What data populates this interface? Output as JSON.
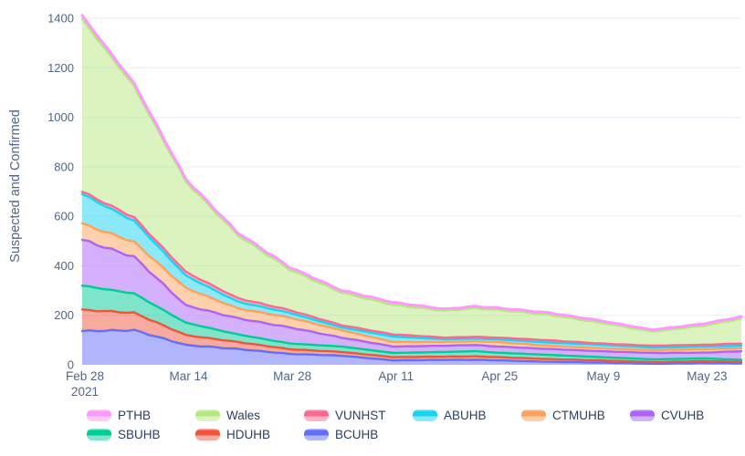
{
  "chart": {
    "y_axis": {
      "title": "Suspected and Confirmed",
      "ticks": [
        0,
        200,
        400,
        600,
        800,
        1000,
        1200,
        1400
      ]
    },
    "x_axis": {
      "ticks": [
        {
          "label": "Feb 28",
          "sub": "2021",
          "day": 0
        },
        {
          "label": "Mar 14",
          "sub": "",
          "day": 14
        },
        {
          "label": "Mar 28",
          "sub": "",
          "day": 28
        },
        {
          "label": "Apr 11",
          "sub": "",
          "day": 42
        },
        {
          "label": "Apr 25",
          "sub": "",
          "day": 56
        },
        {
          "label": "May 9",
          "sub": "",
          "day": 70
        },
        {
          "label": "May 23",
          "sub": "",
          "day": 84
        }
      ]
    },
    "colors": {
      "grid": "#EBF0F8",
      "tick_text": "#506784",
      "legend_text": "#2b3f5e",
      "background": "#ffffff"
    },
    "chart_data": {
      "type": "area",
      "stacked": true,
      "title": "",
      "xlabel": "",
      "ylabel": "Suspected and Confirmed",
      "ylim": [
        0,
        1450
      ],
      "grid": true,
      "legend_position": "bottom",
      "x_unit": "days since Feb 28, 2021",
      "keyframe_days": [
        0,
        7,
        14,
        21,
        28,
        35,
        42,
        49,
        53,
        56,
        63,
        70,
        77,
        84,
        89
      ],
      "keyframe_dates": [
        "Feb 28",
        "Mar 7",
        "Mar 14",
        "Mar 21",
        "Mar 28",
        "Apr 4",
        "Apr 11",
        "Apr 18",
        "Apr 22",
        "Apr 25",
        "May 2",
        "May 9",
        "May 16",
        "May 23",
        "May 28"
      ],
      "stack_order_note": "series listed bottom of stack to top of stack",
      "series": [
        {
          "name": "BCUHB",
          "color": "#636EFA",
          "pale": "#b1b7fc",
          "values": [
            136,
            140,
            80,
            64,
            44,
            37,
            18,
            20,
            20,
            18,
            12,
            9,
            4,
            7,
            6
          ]
        },
        {
          "name": "HDUHB",
          "color": "#EF553B",
          "pale": "#f7aa9d",
          "values": [
            86,
            70,
            40,
            28,
            19,
            15,
            13,
            13,
            14,
            13,
            11,
            9,
            7,
            8,
            6
          ]
        },
        {
          "name": "SBUHB",
          "color": "#00CC96",
          "pale": "#80e6cb",
          "values": [
            98,
            78,
            50,
            31,
            23,
            22,
            17,
            19,
            21,
            18,
            17,
            13,
            11,
            11,
            8
          ]
        },
        {
          "name": "CVUHB",
          "color": "#AB63FA",
          "pale": "#d5b1fc",
          "values": [
            185,
            148,
            70,
            65,
            65,
            36,
            26,
            25,
            25,
            25,
            24,
            24,
            26,
            23,
            35
          ]
        },
        {
          "name": "CTMUHB",
          "color": "#FFA15A",
          "pale": "#ffd0ac",
          "values": [
            65,
            60,
            70,
            40,
            40,
            30,
            18,
            15,
            15,
            18,
            13,
            12,
            11,
            14,
            12
          ]
        },
        {
          "name": "ABUHB",
          "color": "#19D3F3",
          "pale": "#8ce9f9",
          "values": [
            120,
            85,
            50,
            27,
            19,
            11,
            22,
            11,
            11,
            11,
            13,
            14,
            11,
            11,
            10
          ]
        },
        {
          "name": "VUNHST",
          "color": "#FF6692",
          "pale": "#ffb2c8",
          "values": [
            10,
            14,
            15,
            14,
            11,
            9,
            9,
            7,
            7,
            7,
            9,
            5,
            7,
            7,
            9
          ]
        },
        {
          "name": "Wales",
          "color": "#B6E880",
          "pale": "#dbf3bf",
          "values": [
            695,
            530,
            365,
            255,
            164,
            132,
            119,
            108,
            115,
            112,
            103,
            84,
            57,
            77,
            100
          ]
        },
        {
          "name": "PTHB",
          "color": "#FF97FF",
          "pale": "#ffcbff",
          "values": [
            15,
            12,
            10,
            10,
            10,
            9,
            10,
            7,
            8,
            8,
            8,
            8,
            7,
            8,
            8
          ]
        }
      ],
      "legend_order": [
        "PTHB",
        "Wales",
        "VUNHST",
        "ABUHB",
        "CTMUHB",
        "CVUHB",
        "SBUHB",
        "HDUHB",
        "BCUHB"
      ]
    }
  }
}
